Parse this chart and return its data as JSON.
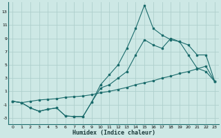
{
  "xlabel": "Humidex (Indice chaleur)",
  "background_color": "#cde8e5",
  "grid_color": "#aecfcc",
  "line_color": "#1a6b6b",
  "xlim": [
    -0.5,
    23.5
  ],
  "ylim": [
    -4,
    14.5
  ],
  "xticks": [
    0,
    1,
    2,
    3,
    4,
    5,
    6,
    7,
    8,
    9,
    10,
    11,
    12,
    13,
    14,
    15,
    16,
    17,
    18,
    19,
    20,
    21,
    22,
    23
  ],
  "yticks": [
    -3,
    -1,
    1,
    3,
    5,
    7,
    9,
    11,
    13
  ],
  "series1_x": [
    0,
    1,
    2,
    3,
    4,
    5,
    6,
    7,
    8,
    9,
    10,
    11,
    12,
    13,
    14,
    15,
    16,
    17,
    18,
    19,
    20,
    21,
    22,
    23
  ],
  "series1_y": [
    -0.5,
    -0.7,
    -1.5,
    -2.0,
    -1.7,
    -1.5,
    -2.7,
    -2.8,
    -2.8,
    -0.6,
    2.0,
    3.5,
    5.0,
    7.5,
    10.5,
    14.0,
    10.5,
    9.5,
    8.8,
    8.5,
    6.5,
    4.5,
    4.0,
    2.5
  ],
  "series2_x": [
    0,
    1,
    2,
    3,
    4,
    5,
    6,
    7,
    8,
    9,
    10,
    11,
    12,
    13,
    14,
    15,
    16,
    17,
    18,
    19,
    20,
    21,
    22,
    23
  ],
  "series2_y": [
    -0.5,
    -0.7,
    -1.5,
    -2.0,
    -1.7,
    -1.5,
    -2.7,
    -2.8,
    -2.8,
    -0.6,
    1.5,
    2.0,
    3.0,
    4.0,
    6.5,
    8.8,
    8.0,
    7.5,
    9.0,
    8.5,
    8.0,
    6.5,
    6.5,
    2.5
  ],
  "series3_x": [
    0,
    1,
    2,
    3,
    4,
    5,
    6,
    7,
    8,
    9,
    10,
    11,
    12,
    13,
    14,
    15,
    16,
    17,
    18,
    19,
    20,
    21,
    22,
    23
  ],
  "series3_y": [
    -0.5,
    -0.7,
    -0.5,
    -0.3,
    -0.2,
    -0.1,
    0.1,
    0.2,
    0.3,
    0.5,
    0.8,
    1.0,
    1.3,
    1.6,
    2.0,
    2.3,
    2.6,
    3.0,
    3.3,
    3.7,
    4.0,
    4.4,
    4.8,
    2.5
  ]
}
